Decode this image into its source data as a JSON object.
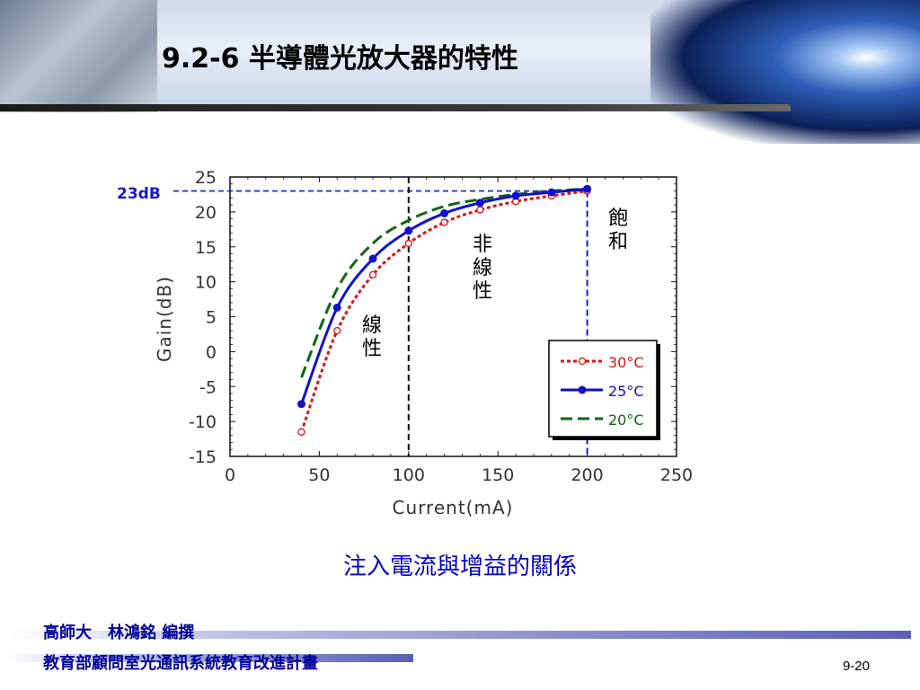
{
  "slide": {
    "title": "9.2-6 半導體光放大器的特性",
    "caption": "注入電流與增益的關係",
    "footer_line1": "高師大　林鴻銘 編撰",
    "footer_line2": "教育部顧問室光通訊系統教育改進計畫",
    "page_number": "9-20"
  },
  "colors": {
    "series_30C": "#dd1111",
    "series_25C": "#1111cc",
    "series_20C": "#116611",
    "guide_blue": "#1a1acc",
    "caption": "#0000cc",
    "footer": "#000099"
  },
  "chart_data": {
    "type": "line",
    "title": "",
    "xlabel": "Current(mA)",
    "ylabel": "Gain(dB)",
    "xlim": [
      0,
      250
    ],
    "ylim": [
      -15,
      25
    ],
    "xticks": [
      "0",
      "50",
      "100",
      "150",
      "200",
      "250"
    ],
    "yticks": [
      "25",
      "20",
      "15",
      "10",
      "5",
      "0",
      "-5",
      "-10",
      "-15"
    ],
    "grid": false,
    "legend_position": "bottom-right",
    "x": [
      40,
      60,
      80,
      100,
      120,
      140,
      160,
      180,
      200
    ],
    "series": [
      {
        "name": "30°C",
        "color": "#dd1111",
        "style": "dotted",
        "marker": "open-circle",
        "values": [
          -11.5,
          3.0,
          11.0,
          15.5,
          18.5,
          20.3,
          21.5,
          22.3,
          23.0
        ]
      },
      {
        "name": "25°C",
        "color": "#1111cc",
        "style": "solid",
        "marker": "filled-circle",
        "values": [
          -7.5,
          6.3,
          13.3,
          17.3,
          19.8,
          21.3,
          22.3,
          22.8,
          23.3
        ]
      },
      {
        "name": "20°C",
        "color": "#116611",
        "style": "dashed",
        "marker": "none",
        "values": [
          -3.7,
          9.0,
          15.5,
          18.8,
          20.8,
          21.8,
          22.5,
          23.0,
          23.3
        ]
      }
    ],
    "reference": {
      "label": "23dB",
      "y": 23,
      "x_lines": [
        100,
        200
      ]
    },
    "annotations": {
      "linear": [
        "線",
        "性"
      ],
      "nonlinear": [
        "非",
        "線",
        "性"
      ],
      "saturation": [
        "飽",
        "和"
      ]
    }
  }
}
